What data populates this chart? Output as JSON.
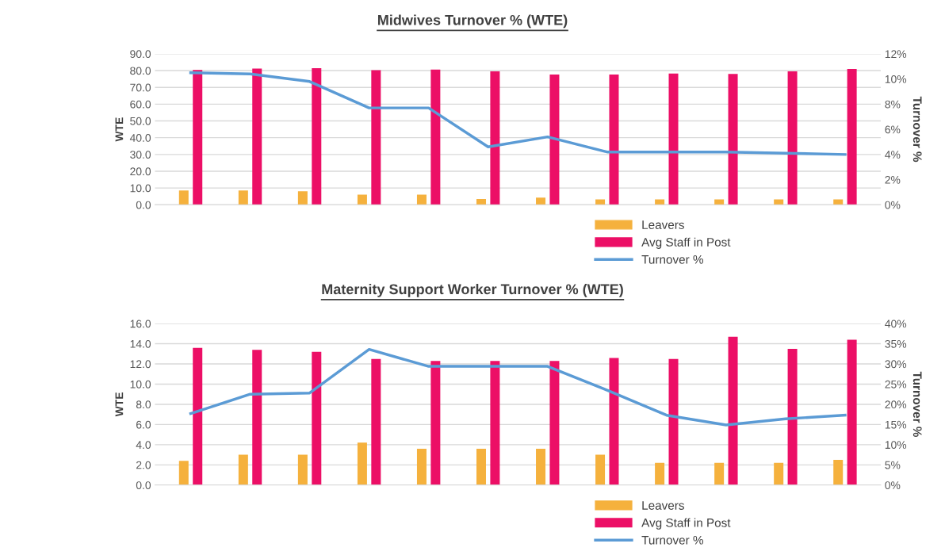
{
  "chart_data": [
    {
      "type": "bar",
      "title": "Midwives Turnover % (WTE)",
      "ylabel": "WTE",
      "y2label": "Turnover %",
      "categories": [
        null,
        null,
        null,
        null,
        null,
        null,
        null,
        null,
        null,
        null,
        null,
        null
      ],
      "series": [
        {
          "name": "Leavers",
          "color": "#f5b13d",
          "values": [
            8.5,
            8.5,
            8.1,
            6.1,
            6.1,
            3.5,
            4.3,
            3.2,
            3.2,
            3.2,
            3.2,
            3.2
          ]
        },
        {
          "name": "Avg Staff in Post",
          "color": "#ec0f66",
          "values": [
            80.4,
            81.2,
            81.4,
            80.3,
            80.6,
            79.5,
            77.7,
            77.7,
            78.3,
            78.0,
            79.5,
            81.0
          ]
        },
        {
          "name": "Turnover %",
          "type": "line",
          "axis": "y2",
          "color": "#5b9bd5",
          "values": [
            10.5,
            10.4,
            9.8,
            7.7,
            7.7,
            4.6,
            5.4,
            4.2,
            4.2,
            4.2,
            4.1,
            4.0
          ]
        }
      ],
      "ylim": [
        0,
        90
      ],
      "yticks": [
        {
          "value": 0,
          "label": "0.0"
        },
        {
          "value": 10,
          "label": "10.0"
        },
        {
          "value": 20,
          "label": "20.0"
        },
        {
          "value": 30,
          "label": "30.0"
        },
        {
          "value": 40,
          "label": "40.0"
        },
        {
          "value": 50,
          "label": "50.0"
        },
        {
          "value": 60,
          "label": "60.0"
        },
        {
          "value": 70,
          "label": "70.0"
        },
        {
          "value": 80,
          "label": "80.0"
        },
        {
          "value": 90,
          "label": "90.0"
        }
      ],
      "y2lim": [
        0,
        12
      ],
      "y2ticks": [
        {
          "value": 0,
          "label": "0%"
        },
        {
          "value": 2,
          "label": "2%"
        },
        {
          "value": 4,
          "label": "4%"
        },
        {
          "value": 6,
          "label": "6%"
        },
        {
          "value": 8,
          "label": "8%"
        },
        {
          "value": 10,
          "label": "10%"
        },
        {
          "value": 12,
          "label": "12%"
        }
      ],
      "grid": "y",
      "legend": "bottom"
    },
    {
      "type": "bar",
      "title": "Maternity Support Worker Turnover % (WTE)",
      "ylabel": "WTE",
      "y2label": "Turnover %",
      "categories": [
        null,
        null,
        null,
        null,
        null,
        null,
        null,
        null,
        null,
        null,
        null,
        null
      ],
      "series": [
        {
          "name": "Leavers",
          "color": "#f5b13d",
          "values": [
            2.4,
            3.0,
            3.0,
            4.2,
            3.6,
            3.6,
            3.6,
            3.0,
            2.2,
            2.2,
            2.2,
            2.5
          ]
        },
        {
          "name": "Avg Staff in Post",
          "color": "#ec0f66",
          "values": [
            13.6,
            13.4,
            13.2,
            12.5,
            12.3,
            12.3,
            12.3,
            12.6,
            12.5,
            14.7,
            13.5,
            14.4
          ]
        },
        {
          "name": "Turnover %",
          "type": "line",
          "axis": "y2",
          "color": "#5b9bd5",
          "values": [
            17.7,
            22.5,
            22.8,
            33.6,
            29.4,
            29.4,
            29.4,
            23.5,
            17.3,
            14.9,
            16.4,
            17.3
          ]
        }
      ],
      "ylim": [
        0,
        16
      ],
      "yticks": [
        {
          "value": 0,
          "label": "0.0"
        },
        {
          "value": 2,
          "label": "2.0"
        },
        {
          "value": 4,
          "label": "4.0"
        },
        {
          "value": 6,
          "label": "6.0"
        },
        {
          "value": 8,
          "label": "8.0"
        },
        {
          "value": 10,
          "label": "10.0"
        },
        {
          "value": 12,
          "label": "12.0"
        },
        {
          "value": 14,
          "label": "14.0"
        },
        {
          "value": 16,
          "label": "16.0"
        }
      ],
      "y2lim": [
        0,
        40
      ],
      "y2ticks": [
        {
          "value": 0,
          "label": "0%"
        },
        {
          "value": 5,
          "label": "5%"
        },
        {
          "value": 10,
          "label": "10%"
        },
        {
          "value": 15,
          "label": "15%"
        },
        {
          "value": 20,
          "label": "20%"
        },
        {
          "value": 25,
          "label": "25%"
        },
        {
          "value": 30,
          "label": "30%"
        },
        {
          "value": 35,
          "label": "35%"
        },
        {
          "value": 40,
          "label": "40%"
        }
      ],
      "grid": "y",
      "legend": "bottom"
    }
  ]
}
